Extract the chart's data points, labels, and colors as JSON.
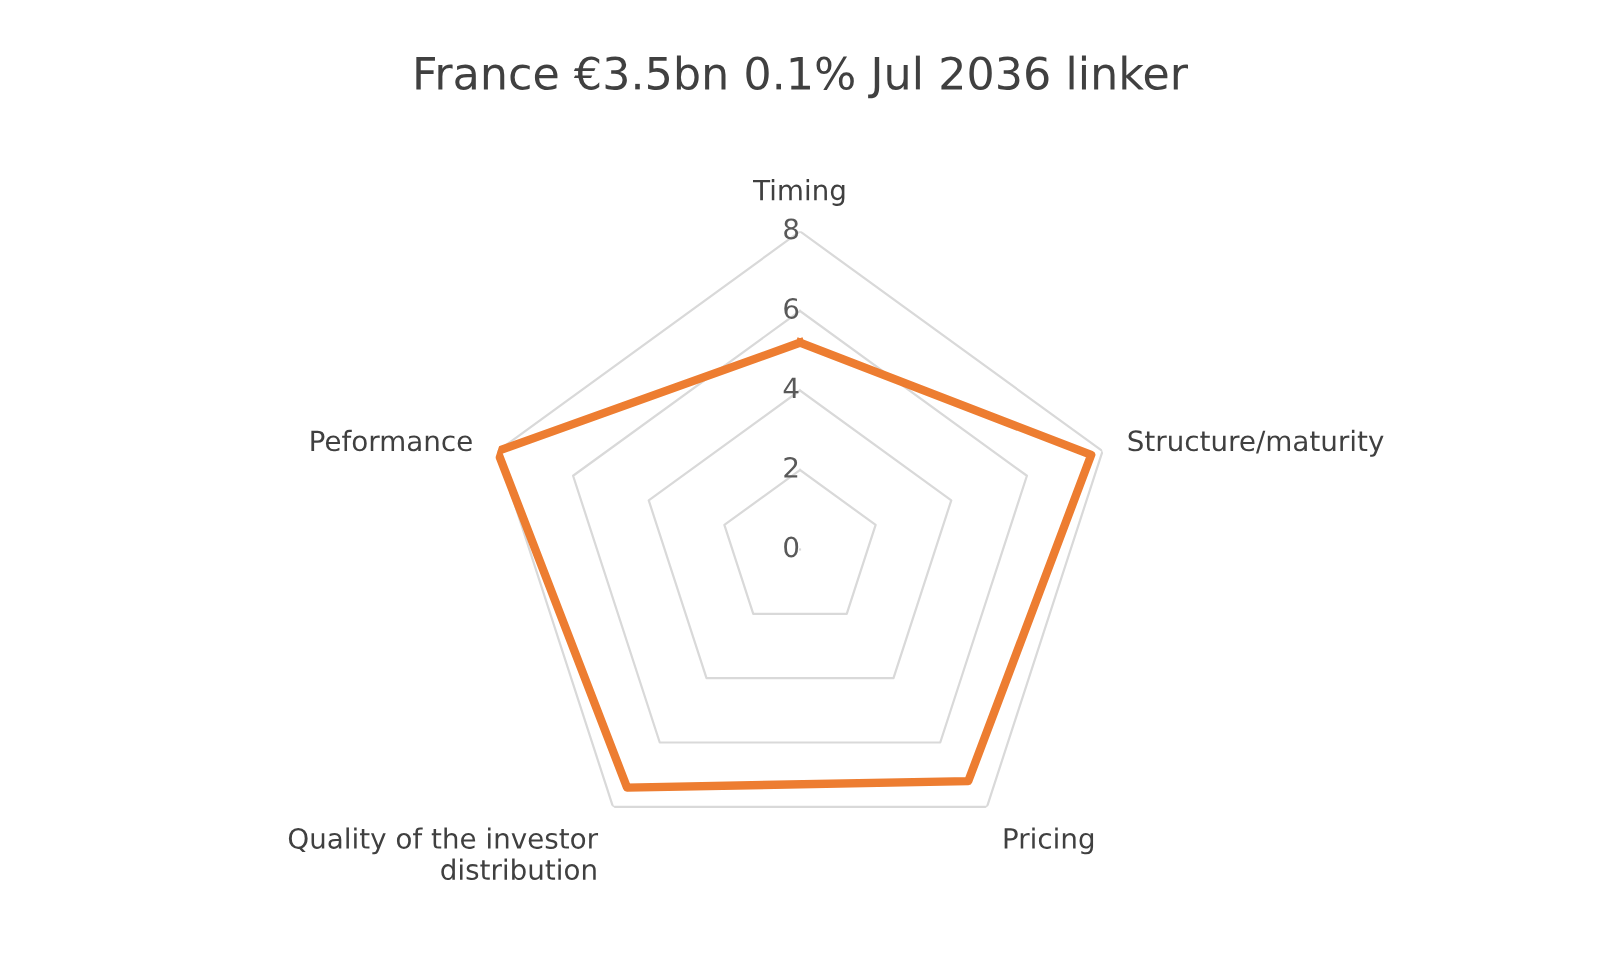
{
  "chart_data": {
    "type": "radar",
    "title": "France €3.5bn 0.1% Jul 2036 linker",
    "categories": [
      "Timing",
      "Structure/maturity",
      "Pricing",
      "Quality of the investor\ndistribution",
      "Peformance"
    ],
    "series": [
      {
        "color": "#ed7d31",
        "values": [
          5.2,
          7.7,
          7.2,
          7.4,
          8
        ]
      }
    ],
    "ylim": [
      0,
      8
    ],
    "yticks": [
      0,
      2,
      4,
      6,
      8
    ],
    "grid": true
  }
}
